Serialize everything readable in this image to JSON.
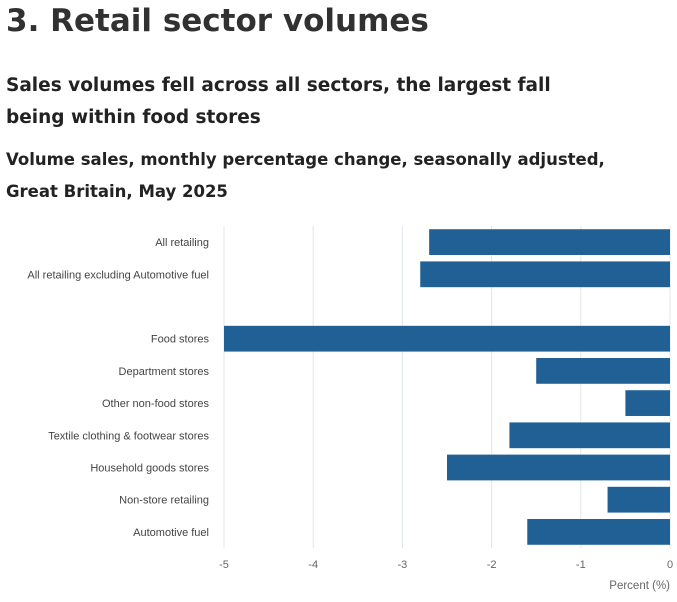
{
  "section": {
    "heading": "3.  Retail sector volumes",
    "subheading": "Sales volumes fell across all sectors, the largest fall being within food stores"
  },
  "chart_data": {
    "type": "bar",
    "orientation": "horizontal",
    "title": "Volume sales, monthly percentage change, seasonally adjusted, Great Britain, May 2025",
    "xlabel": "Percent (%)",
    "ylabel": "",
    "xlim": [
      -5,
      0
    ],
    "xticks": [
      "-5",
      "-4",
      "-3",
      "-2",
      "-1",
      "0"
    ],
    "grid": true,
    "bar_color": "#206095",
    "categories": [
      "All retailing",
      "All retailing excluding Automotive fuel",
      "",
      "Food stores",
      "Department stores",
      "Other non-food stores",
      "Textile clothing & footwear stores",
      "Household goods stores",
      "Non-store retailing",
      "Automotive fuel"
    ],
    "values": [
      -2.7,
      -2.8,
      null,
      -5.0,
      -1.5,
      -0.5,
      -1.8,
      -2.5,
      -0.7,
      -1.6
    ]
  }
}
